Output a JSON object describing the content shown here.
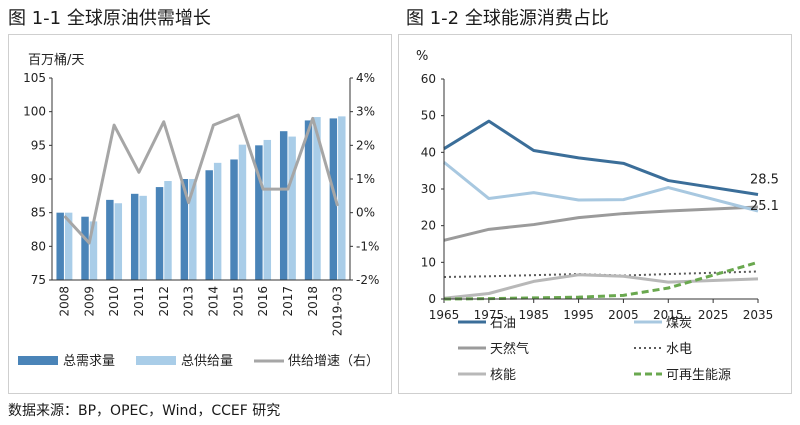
{
  "left_title": "图 1-1 全球原油供需增长",
  "right_title": "图 1-2 全球能源消费占比",
  "source": "数据来源：BP，OPEC，Wind，CCEF 研究",
  "colors": {
    "demand": "#4a84b8",
    "supply": "#a9cde8",
    "growth": "#a6a6a6",
    "oil": "#3b6e99",
    "coal": "#a8c8e0",
    "gas": "#9b9b9b",
    "hydro": "#5a5a5a",
    "nuclear": "#b8b8b8",
    "renewable": "#6aa84f"
  },
  "chart_data": [
    {
      "type": "bar",
      "title": "图 1-1 全球原油供需增长",
      "ylabel": "百万桶/天",
      "ylim": [
        75,
        105
      ],
      "y_ticks": [
        75,
        80,
        85,
        90,
        95,
        100,
        105
      ],
      "y2lim": [
        -2,
        4
      ],
      "y2_ticks": [
        "-2%",
        "-1%",
        "0%",
        "1%",
        "2%",
        "3%",
        "4%"
      ],
      "categories": [
        "2008",
        "2009",
        "2010",
        "2011",
        "2012",
        "2013",
        "2014",
        "2015",
        "2016",
        "2017",
        "2018",
        "2019-03"
      ],
      "series": [
        {
          "name": "总需求量",
          "kind": "bar",
          "color_key": "demand",
          "values": [
            85.0,
            84.4,
            86.9,
            87.8,
            88.8,
            90.0,
            91.3,
            92.9,
            95.0,
            97.1,
            98.7,
            99.0
          ]
        },
        {
          "name": "总供给量",
          "kind": "bar",
          "color_key": "supply",
          "values": [
            85.0,
            83.7,
            86.4,
            87.5,
            89.7,
            90.0,
            92.4,
            95.1,
            95.8,
            96.3,
            99.2,
            99.3
          ]
        },
        {
          "name": "供给增速（右）",
          "kind": "line",
          "axis": "right",
          "color_key": "growth",
          "values": [
            -0.1,
            -0.9,
            2.6,
            1.2,
            2.7,
            0.3,
            2.6,
            2.9,
            0.7,
            0.7,
            2.8,
            0.2
          ]
        }
      ]
    },
    {
      "type": "line",
      "title": "图 1-2 全球能源消费占比",
      "ylabel": "%",
      "ylim": [
        0,
        60
      ],
      "y_ticks": [
        0,
        10,
        20,
        30,
        40,
        50,
        60
      ],
      "x_ticks": [
        "1965",
        "1975",
        "1985",
        "1995",
        "2005",
        "2015",
        "2025",
        "2035"
      ],
      "x_range": [
        1965,
        2035
      ],
      "series": [
        {
          "name": "石油",
          "color_key": "oil",
          "style": "solid",
          "width": 3,
          "x": [
            1965,
            1975,
            1985,
            1995,
            2005,
            2015,
            2035
          ],
          "y": [
            41,
            48.5,
            40.5,
            38.5,
            37,
            32.3,
            28.5
          ]
        },
        {
          "name": "煤炭",
          "color_key": "coal",
          "style": "solid",
          "width": 3,
          "x": [
            1965,
            1975,
            1985,
            1995,
            2005,
            2015,
            2035
          ],
          "y": [
            37.3,
            27.4,
            29,
            27,
            27.1,
            30.4,
            24
          ]
        },
        {
          "name": "天然气",
          "color_key": "gas",
          "style": "solid",
          "width": 3,
          "x": [
            1965,
            1975,
            1985,
            1995,
            2005,
            2015,
            2035
          ],
          "y": [
            16,
            19,
            20.3,
            22.2,
            23.3,
            24,
            25.1
          ]
        },
        {
          "name": "水电",
          "color_key": "hydro",
          "style": "dotted",
          "width": 2,
          "x": [
            1965,
            1975,
            1985,
            1995,
            2005,
            2015,
            2035
          ],
          "y": [
            6,
            6.2,
            6.5,
            6.8,
            6.4,
            6.8,
            7.5
          ]
        },
        {
          "name": "核能",
          "color_key": "nuclear",
          "style": "solid",
          "width": 3,
          "x": [
            1965,
            1975,
            1985,
            1995,
            2005,
            2015,
            2035
          ],
          "y": [
            0.2,
            1.5,
            4.8,
            6.6,
            6.2,
            4.6,
            5.5
          ]
        },
        {
          "name": "可再生能源",
          "color_key": "renewable",
          "style": "dashed",
          "width": 3,
          "x": [
            1965,
            1975,
            1985,
            1995,
            2005,
            2015,
            2035
          ],
          "y": [
            0,
            0.1,
            0.3,
            0.5,
            1,
            3,
            10
          ]
        }
      ],
      "annotations": [
        {
          "text": "28.5",
          "series": "石油"
        },
        {
          "text": "25.1",
          "series": "天然气"
        }
      ]
    }
  ]
}
